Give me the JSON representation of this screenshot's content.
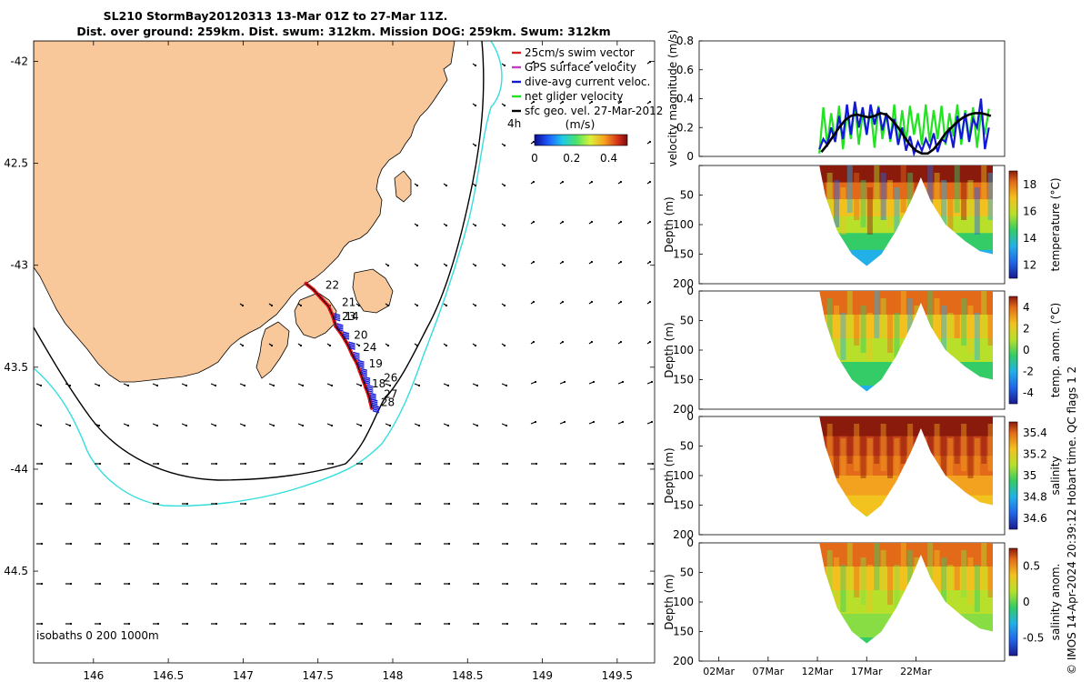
{
  "title": {
    "line1": "SL210 StormBay20120313 13-Mar 01Z to 27-Mar 11Z.",
    "line2": "Dist. over ground: 259km. Dist. swum: 312km. Mission DOG: 259km. Swum: 312km"
  },
  "colors": {
    "land": "#f9c89a",
    "isobath_200": "#000000",
    "isobath_1000": "#33dede",
    "track": "#e8141b",
    "dive_avg": "#1218d8",
    "net_velocity": "#22e322",
    "swim_vector": "#d62020",
    "gps_vector": "#c040c0",
    "sfc_geo": "#000000"
  },
  "chart_data": [
    {
      "id": "map",
      "type": "map",
      "xlabel": "",
      "ylabel": "",
      "xlim": [
        145.6,
        149.75
      ],
      "ylim": [
        -44.95,
        -41.9
      ],
      "x_ticks": [
        146,
        146.5,
        147,
        147.5,
        148,
        148.5,
        149,
        149.5
      ],
      "x_tick_labels": [
        "146",
        "146.5",
        "147",
        "147.5",
        "148",
        "148.5",
        "149",
        "149.5"
      ],
      "y_ticks": [
        -42,
        -42.5,
        -43,
        -43.5,
        -44,
        -44.5
      ],
      "y_tick_labels": [
        "-42",
        "42.5",
        "-43",
        "43.5",
        "-44",
        "44.5"
      ],
      "isobath_label": "isobaths  0   200  1000m",
      "legend": [
        {
          "label": "25cm/s swim vector",
          "color_key": "swim_vector"
        },
        {
          "label": "GPS surface velocity",
          "color_key": "gps_vector"
        },
        {
          "label": "dive-avg current veloc.",
          "color_key": "dive_avg"
        },
        {
          "label": "net glider velocity",
          "color_key": "net_velocity"
        },
        {
          "label": "sfc geo. vel. 27-Mar-2012",
          "color_key": "sfc_geo"
        }
      ],
      "time_step_label": "4h",
      "colorbar": {
        "label": "(m/s)",
        "ticks": [
          "0",
          "0.2",
          "0.4"
        ],
        "range": [
          0,
          0.5
        ]
      },
      "day_labels": [
        {
          "day": "22",
          "lon": 147.55,
          "lat": -43.115
        },
        {
          "day": "21",
          "lon": 147.66,
          "lat": -43.2
        },
        {
          "day": "23",
          "lon": 147.66,
          "lat": -43.27
        },
        {
          "day": "14",
          "lon": 147.68,
          "lat": -43.27
        },
        {
          "day": "20",
          "lon": 147.74,
          "lat": -43.36
        },
        {
          "day": "24",
          "lon": 147.8,
          "lat": -43.42
        },
        {
          "day": "19",
          "lon": 147.84,
          "lat": -43.5
        },
        {
          "day": "26",
          "lon": 147.94,
          "lat": -43.57
        },
        {
          "day": "18",
          "lon": 147.86,
          "lat": -43.6
        },
        {
          "day": "27",
          "lon": 147.94,
          "lat": -43.65
        },
        {
          "day": "28",
          "lon": 147.92,
          "lat": -43.69
        }
      ],
      "track": [
        [
          147.42,
          -43.09
        ],
        [
          147.47,
          -43.12
        ],
        [
          147.52,
          -43.16
        ],
        [
          147.57,
          -43.2
        ],
        [
          147.6,
          -43.25
        ],
        [
          147.62,
          -43.3
        ],
        [
          147.66,
          -43.34
        ],
        [
          147.7,
          -43.39
        ],
        [
          147.73,
          -43.44
        ],
        [
          147.76,
          -43.48
        ],
        [
          147.78,
          -43.52
        ],
        [
          147.8,
          -43.56
        ],
        [
          147.82,
          -43.6
        ],
        [
          147.84,
          -43.64
        ],
        [
          147.85,
          -43.67
        ],
        [
          147.86,
          -43.7
        ]
      ]
    },
    {
      "id": "velocity",
      "type": "line",
      "ylabel": "velocity magnitude (m/s)",
      "ylim": [
        0,
        0.8
      ],
      "y_ticks": [
        0,
        0.2,
        0.4,
        0.6,
        0.8
      ],
      "y_tick_labels": [
        "0",
        "0.2",
        "0.4",
        "0.6",
        "0.8"
      ],
      "xlim": [
        0,
        31
      ],
      "series": [
        {
          "name": "net glider velocity",
          "color_key": "net_velocity",
          "x": [
            12.2,
            12.6,
            13,
            13.4,
            13.8,
            14.2,
            14.6,
            15,
            15.4,
            15.8,
            16.2,
            16.6,
            17,
            17.4,
            17.8,
            18.2,
            18.6,
            19,
            19.4,
            19.8,
            20.2,
            20.6,
            21,
            21.4,
            21.8,
            22.2,
            22.6,
            23,
            23.4,
            23.8,
            24.2,
            24.6,
            25,
            25.4,
            25.8,
            26.2,
            26.6,
            27,
            27.4,
            27.8,
            28.2,
            28.6,
            29,
            29.4
          ],
          "values": [
            0.02,
            0.34,
            0.08,
            0.3,
            0.1,
            0.35,
            0.05,
            0.32,
            0.12,
            0.36,
            0.08,
            0.3,
            0.15,
            0.33,
            0.06,
            0.35,
            0.12,
            0.3,
            0.1,
            0.36,
            0.08,
            0.32,
            0.1,
            0.35,
            0.15,
            0.3,
            0.08,
            0.36,
            0.1,
            0.32,
            0.12,
            0.35,
            0.08,
            0.3,
            0.14,
            0.36,
            0.08,
            0.32,
            0.12,
            0.34,
            0.06,
            0.3,
            0.15,
            0.33
          ]
        },
        {
          "name": "dive-avg current veloc.",
          "color_key": "dive_avg",
          "x": [
            12.2,
            12.6,
            13,
            13.4,
            13.8,
            14.2,
            14.6,
            15,
            15.4,
            15.8,
            16.2,
            16.6,
            17,
            17.4,
            17.8,
            18.2,
            18.6,
            19,
            19.4,
            19.8,
            20.2,
            20.6,
            21,
            21.4,
            21.8,
            22.2,
            22.6,
            23,
            23.4,
            23.8,
            24.2,
            24.6,
            25,
            25.4,
            25.8,
            26.2,
            26.6,
            27,
            27.4,
            27.8,
            28.2,
            28.6,
            29,
            29.4
          ],
          "values": [
            0.05,
            0.12,
            0.08,
            0.2,
            0.1,
            0.28,
            0.12,
            0.36,
            0.15,
            0.38,
            0.2,
            0.34,
            0.15,
            0.36,
            0.22,
            0.34,
            0.18,
            0.3,
            0.12,
            0.26,
            0.08,
            0.2,
            0.04,
            0.14,
            0.02,
            0.1,
            0.04,
            0.12,
            0.06,
            0.16,
            0.03,
            0.12,
            0.1,
            0.2,
            0.06,
            0.28,
            0.12,
            0.3,
            0.1,
            0.26,
            0.2,
            0.4,
            0.05,
            0.2
          ]
        },
        {
          "name": "sfc geo. vel.",
          "color_key": "sfc_geo",
          "x": [
            12.4,
            13,
            13.6,
            14.2,
            14.8,
            15.4,
            16,
            16.6,
            17.2,
            17.8,
            18.4,
            19,
            19.6,
            20.2,
            20.8,
            21.4,
            22,
            22.6,
            23.2,
            23.8,
            24.4,
            25,
            25.6,
            26.2,
            26.8,
            27.4,
            28,
            28.6,
            29.2,
            29.6
          ],
          "values": [
            0.03,
            0.08,
            0.14,
            0.2,
            0.25,
            0.28,
            0.29,
            0.28,
            0.27,
            0.28,
            0.3,
            0.29,
            0.25,
            0.2,
            0.14,
            0.08,
            0.04,
            0.02,
            0.02,
            0.05,
            0.1,
            0.16,
            0.2,
            0.24,
            0.27,
            0.29,
            0.3,
            0.3,
            0.29,
            0.28
          ]
        }
      ]
    },
    {
      "id": "temperature",
      "type": "heatmap",
      "ylabel": "Depth (m)",
      "ylim": [
        200,
        0
      ],
      "y_ticks": [
        0,
        50,
        100,
        150,
        200
      ],
      "y_tick_labels": [
        "",
        "50",
        "100",
        "150",
        "200"
      ],
      "colorbar_label": "temperature (°C)",
      "colorbar_ticks": [
        "18",
        "16",
        "14",
        "12"
      ],
      "colorbar_range": [
        11,
        19
      ]
    },
    {
      "id": "temp_anom",
      "type": "heatmap",
      "ylabel": "Depth (m)",
      "ylim": [
        200,
        0
      ],
      "y_ticks": [
        0,
        50,
        100,
        150,
        200
      ],
      "y_tick_labels": [
        "0",
        "50",
        "100",
        "150",
        "200"
      ],
      "colorbar_label": "temp. anom. (°C)",
      "colorbar_ticks": [
        "4",
        "2",
        "0",
        "-2",
        "-4"
      ],
      "colorbar_range": [
        -4,
        4
      ]
    },
    {
      "id": "salinity",
      "type": "heatmap",
      "ylabel": "Depth (m)",
      "ylim": [
        200,
        0
      ],
      "y_ticks": [
        0,
        50,
        100,
        150,
        200
      ],
      "y_tick_labels": [
        "0",
        "50",
        "100",
        "150",
        "200"
      ],
      "colorbar_label": "salinity",
      "colorbar_ticks": [
        "35.4",
        "35.2",
        "35",
        "34.8",
        "34.6"
      ],
      "colorbar_range": [
        34.55,
        35.45
      ]
    },
    {
      "id": "sal_anom",
      "type": "heatmap",
      "ylabel": "Depth (m)",
      "ylim": [
        200,
        0
      ],
      "y_ticks": [
        0,
        50,
        100,
        150,
        200
      ],
      "y_tick_labels": [
        "0",
        "50",
        "100",
        "150",
        "200"
      ],
      "colorbar_label": "salinity anom.",
      "colorbar_ticks": [
        "0.5",
        "0",
        "-0.5"
      ],
      "colorbar_range": [
        -0.5,
        0.5
      ],
      "x_tick_labels": [
        "02Mar",
        "07Mar",
        "12Mar",
        "17Mar",
        "22Mar"
      ],
      "x_ticks": [
        2,
        7,
        12,
        17,
        22
      ]
    }
  ],
  "side_note": "© IMOS 14-Apr-2024 20:39:12 Hobart time. QC flags 1  2"
}
